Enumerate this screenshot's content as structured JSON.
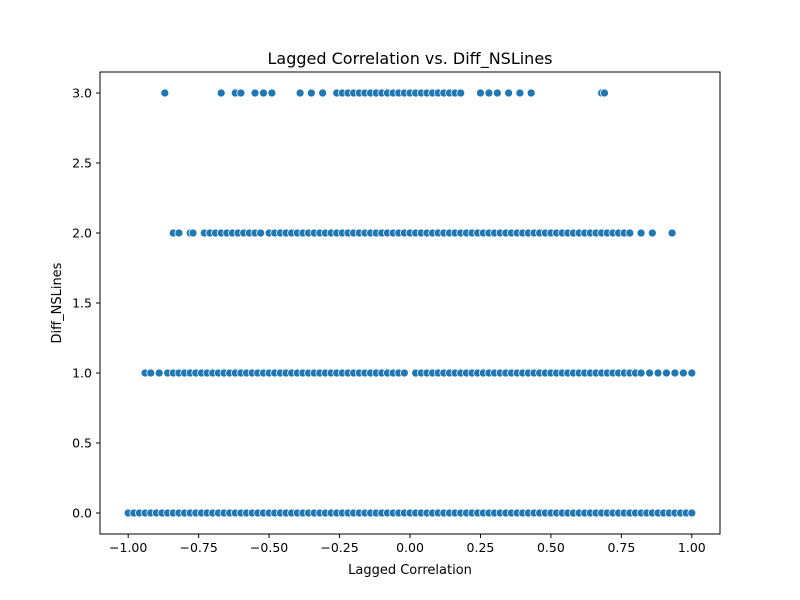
{
  "chart_data": {
    "type": "scatter",
    "title": "Lagged Correlation vs. Diff_NSLines",
    "xlabel": "Lagged Correlation",
    "ylabel": "Diff_NSLines",
    "xlim": [
      -1.1,
      1.1
    ],
    "ylim": [
      -0.15,
      3.15
    ],
    "x_ticks": [
      -1.0,
      -0.75,
      -0.5,
      -0.25,
      0.0,
      0.25,
      0.5,
      0.75,
      1.0
    ],
    "x_tick_labels": [
      "−1.00",
      "−0.75",
      "−0.50",
      "−0.25",
      "0.00",
      "0.25",
      "0.50",
      "0.75",
      "1.00"
    ],
    "y_ticks": [
      0.0,
      0.5,
      1.0,
      1.5,
      2.0,
      2.5,
      3.0
    ],
    "y_tick_labels": [
      "0.0",
      "0.5",
      "1.0",
      "1.5",
      "2.0",
      "2.5",
      "3.0"
    ],
    "grid": false,
    "color": "#1f77b4",
    "series": [
      {
        "y": 3.0,
        "x": [
          -0.87,
          -0.67,
          -0.62,
          -0.6,
          -0.55,
          -0.52,
          -0.49,
          -0.39,
          -0.35,
          -0.31,
          -0.26,
          -0.24,
          -0.22,
          -0.2,
          -0.18,
          -0.16,
          -0.14,
          -0.12,
          -0.1,
          -0.08,
          -0.06,
          -0.04,
          -0.02,
          0.0,
          0.02,
          0.04,
          0.06,
          0.08,
          0.1,
          0.12,
          0.14,
          0.16,
          0.18,
          0.25,
          0.28,
          0.31,
          0.35,
          0.39,
          0.43,
          0.68,
          0.69
        ]
      },
      {
        "y": 2.0,
        "x": [
          -0.84,
          -0.82,
          -0.78,
          -0.77,
          -0.73,
          -0.71,
          -0.69,
          -0.67,
          -0.65,
          -0.63,
          -0.61,
          -0.59,
          -0.57,
          -0.55,
          -0.53,
          -0.5,
          -0.48,
          -0.46,
          -0.44,
          -0.42,
          -0.4,
          -0.38,
          -0.36,
          -0.34,
          -0.32,
          -0.3,
          -0.28,
          -0.26,
          -0.24,
          -0.22,
          -0.2,
          -0.18,
          -0.16,
          -0.14,
          -0.12,
          -0.1,
          -0.08,
          -0.06,
          -0.04,
          -0.02,
          0.0,
          0.02,
          0.04,
          0.06,
          0.08,
          0.1,
          0.12,
          0.14,
          0.16,
          0.18,
          0.2,
          0.22,
          0.24,
          0.26,
          0.28,
          0.3,
          0.32,
          0.34,
          0.36,
          0.38,
          0.4,
          0.42,
          0.44,
          0.46,
          0.48,
          0.5,
          0.52,
          0.54,
          0.56,
          0.58,
          0.6,
          0.62,
          0.64,
          0.66,
          0.68,
          0.7,
          0.72,
          0.74,
          0.76,
          0.78,
          0.82,
          0.86,
          0.93
        ]
      },
      {
        "y": 1.0,
        "x": [
          -0.94,
          -0.92,
          -0.89,
          -0.86,
          -0.84,
          -0.82,
          -0.8,
          -0.78,
          -0.76,
          -0.74,
          -0.72,
          -0.7,
          -0.68,
          -0.66,
          -0.64,
          -0.62,
          -0.6,
          -0.58,
          -0.56,
          -0.54,
          -0.52,
          -0.5,
          -0.48,
          -0.46,
          -0.44,
          -0.42,
          -0.4,
          -0.38,
          -0.36,
          -0.34,
          -0.32,
          -0.3,
          -0.28,
          -0.26,
          -0.24,
          -0.22,
          -0.2,
          -0.18,
          -0.16,
          -0.14,
          -0.12,
          -0.1,
          -0.08,
          -0.06,
          -0.04,
          -0.02,
          0.02,
          0.04,
          0.06,
          0.08,
          0.1,
          0.12,
          0.14,
          0.16,
          0.18,
          0.2,
          0.22,
          0.24,
          0.26,
          0.28,
          0.3,
          0.32,
          0.34,
          0.36,
          0.38,
          0.4,
          0.42,
          0.44,
          0.46,
          0.48,
          0.5,
          0.52,
          0.54,
          0.56,
          0.58,
          0.6,
          0.62,
          0.64,
          0.66,
          0.68,
          0.7,
          0.72,
          0.74,
          0.76,
          0.78,
          0.8,
          0.82,
          0.85,
          0.88,
          0.91,
          0.94,
          0.97,
          1.0
        ]
      },
      {
        "y": 0.0,
        "x": [
          -1.0,
          -0.98,
          -0.96,
          -0.94,
          -0.92,
          -0.9,
          -0.88,
          -0.86,
          -0.84,
          -0.82,
          -0.8,
          -0.78,
          -0.76,
          -0.74,
          -0.72,
          -0.7,
          -0.68,
          -0.66,
          -0.64,
          -0.62,
          -0.6,
          -0.58,
          -0.56,
          -0.54,
          -0.52,
          -0.5,
          -0.48,
          -0.46,
          -0.44,
          -0.42,
          -0.4,
          -0.38,
          -0.36,
          -0.34,
          -0.32,
          -0.3,
          -0.28,
          -0.26,
          -0.24,
          -0.22,
          -0.2,
          -0.18,
          -0.16,
          -0.14,
          -0.12,
          -0.1,
          -0.08,
          -0.06,
          -0.04,
          -0.02,
          0.0,
          0.02,
          0.04,
          0.06,
          0.08,
          0.1,
          0.12,
          0.14,
          0.16,
          0.18,
          0.2,
          0.22,
          0.24,
          0.26,
          0.28,
          0.3,
          0.32,
          0.34,
          0.36,
          0.38,
          0.4,
          0.42,
          0.44,
          0.46,
          0.48,
          0.5,
          0.52,
          0.54,
          0.56,
          0.58,
          0.6,
          0.62,
          0.64,
          0.66,
          0.68,
          0.7,
          0.72,
          0.74,
          0.76,
          0.78,
          0.8,
          0.82,
          0.84,
          0.86,
          0.88,
          0.9,
          0.92,
          0.94,
          0.96,
          0.98,
          1.0
        ]
      }
    ]
  }
}
